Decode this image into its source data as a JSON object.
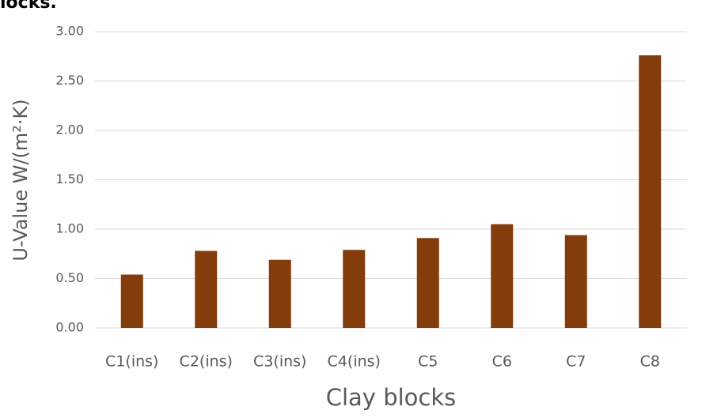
{
  "chart_data": {
    "type": "bar",
    "annotation": "locks.",
    "x_label": "Clay blocks",
    "y_label": "U-Value W/(m²·K)",
    "categories": [
      "C1(ins)",
      "C2(ins)",
      "C3(ins)",
      "C4(ins)",
      "C5",
      "C6",
      "C7",
      "C8"
    ],
    "values": [
      0.54,
      0.78,
      0.69,
      0.79,
      0.91,
      1.05,
      0.94,
      2.76
    ],
    "color": "#843c0c",
    "ylim": [
      0,
      3
    ],
    "yticks": [
      {
        "value": 0,
        "label": "0.00"
      },
      {
        "value": 0.5,
        "label": "0.50"
      },
      {
        "value": 1,
        "label": "1.00"
      },
      {
        "value": 1.5,
        "label": "1.50"
      },
      {
        "value": 2,
        "label": "2.00"
      },
      {
        "value": 2.5,
        "label": "2.50"
      },
      {
        "value": 3,
        "label": "3.00"
      }
    ],
    "grid": true
  }
}
